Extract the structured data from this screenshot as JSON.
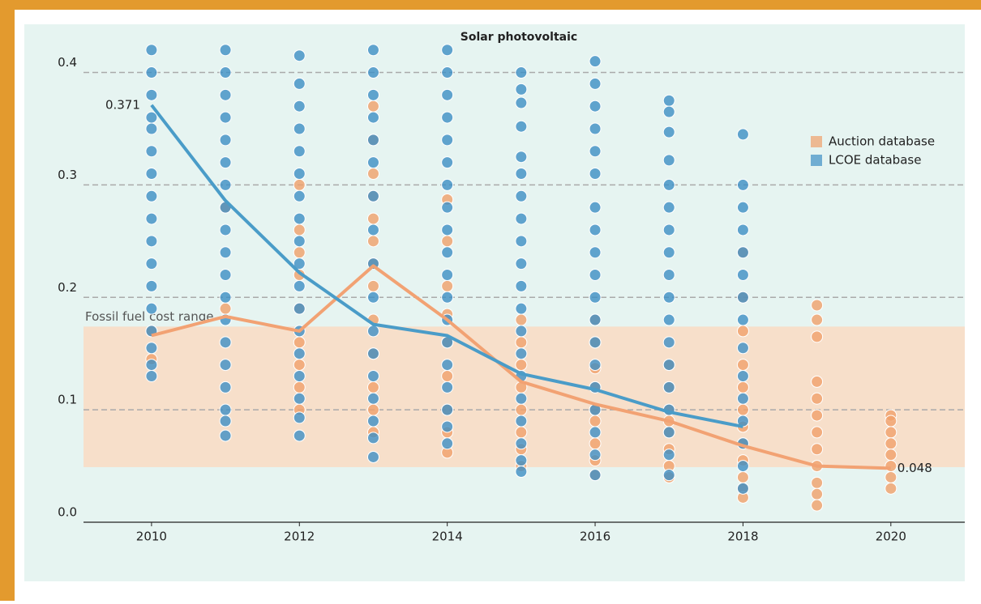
{
  "chart_data": {
    "type": "scatter",
    "title": "Solar photovoltaic",
    "xlim": [
      2009.08,
      2021.0
    ],
    "ylim": [
      0,
      0.44
    ],
    "xticks": [
      2010,
      2012,
      2014,
      2016,
      2018,
      2020
    ],
    "yticks": [
      {
        "value": 0,
        "label": "0.0"
      },
      0.1,
      0.2,
      0.3,
      0.4
    ],
    "grid": true,
    "legend": "upper right",
    "shaded_band": {
      "label": "Fossil fuel cost range",
      "range": [
        0.049,
        0.174
      ],
      "color": "#f7dfca"
    },
    "series": [
      {
        "name": "Auction database",
        "color": "#f0a06a",
        "groups": [
          {
            "x": 2010,
            "values": [
              0.17,
              0.145
            ]
          },
          {
            "x": 2011,
            "values": [
              0.28,
              0.19
            ]
          },
          {
            "x": 2012,
            "values": [
              0.3,
              0.26,
              0.24,
              0.22,
              0.19,
              0.16,
              0.14,
              0.12,
              0.1
            ]
          },
          {
            "x": 2013,
            "values": [
              0.37,
              0.34,
              0.31,
              0.29,
              0.27,
              0.25,
              0.23,
              0.21,
              0.18,
              0.15,
              0.12,
              0.1,
              0.08
            ]
          },
          {
            "x": 2014,
            "values": [
              0.287,
              0.25,
              0.21,
              0.185,
              0.16,
              0.13,
              0.1,
              0.08,
              0.062
            ]
          },
          {
            "x": 2015,
            "values": [
              0.18,
              0.16,
              0.14,
              0.12,
              0.1,
              0.08,
              0.065,
              0.05
            ]
          },
          {
            "x": 2016,
            "values": [
              0.18,
              0.16,
              0.137,
              0.12,
              0.1,
              0.09,
              0.07,
              0.055,
              0.042
            ]
          },
          {
            "x": 2017,
            "values": [
              0.14,
              0.12,
              0.1,
              0.09,
              0.08,
              0.065,
              0.05,
              0.04
            ]
          },
          {
            "x": 2018,
            "values": [
              0.24,
              0.2,
              0.17,
              0.14,
              0.12,
              0.1,
              0.085,
              0.07,
              0.055,
              0.04,
              0.03,
              0.022
            ]
          },
          {
            "x": 2019,
            "values": [
              0.193,
              0.18,
              0.165,
              0.125,
              0.11,
              0.095,
              0.08,
              0.065,
              0.05,
              0.035,
              0.025,
              0.015
            ]
          },
          {
            "x": 2020,
            "values": [
              0.095,
              0.09,
              0.08,
              0.07,
              0.06,
              0.05,
              0.04,
              0.03
            ]
          }
        ]
      },
      {
        "name": "LCOE database",
        "color": "#3d8fc4",
        "groups": [
          {
            "x": 2010,
            "values": [
              0.42,
              0.4,
              0.38,
              0.36,
              0.35,
              0.33,
              0.31,
              0.29,
              0.27,
              0.25,
              0.23,
              0.21,
              0.19,
              0.17,
              0.155,
              0.14,
              0.13
            ]
          },
          {
            "x": 2011,
            "values": [
              0.42,
              0.4,
              0.38,
              0.36,
              0.34,
              0.32,
              0.3,
              0.28,
              0.26,
              0.24,
              0.22,
              0.2,
              0.18,
              0.16,
              0.14,
              0.12,
              0.1,
              0.09,
              0.077
            ]
          },
          {
            "x": 2012,
            "values": [
              0.415,
              0.39,
              0.37,
              0.35,
              0.33,
              0.31,
              0.29,
              0.27,
              0.25,
              0.23,
              0.21,
              0.19,
              0.17,
              0.15,
              0.13,
              0.11,
              0.093,
              0.077
            ]
          },
          {
            "x": 2013,
            "values": [
              0.42,
              0.4,
              0.38,
              0.36,
              0.34,
              0.32,
              0.29,
              0.26,
              0.23,
              0.2,
              0.17,
              0.15,
              0.13,
              0.11,
              0.09,
              0.075,
              0.058
            ]
          },
          {
            "x": 2014,
            "values": [
              0.42,
              0.4,
              0.38,
              0.36,
              0.34,
              0.32,
              0.3,
              0.28,
              0.26,
              0.24,
              0.22,
              0.2,
              0.18,
              0.16,
              0.14,
              0.12,
              0.1,
              0.085,
              0.07
            ]
          },
          {
            "x": 2015,
            "values": [
              0.4,
              0.385,
              0.373,
              0.352,
              0.325,
              0.31,
              0.29,
              0.27,
              0.25,
              0.23,
              0.21,
              0.19,
              0.17,
              0.15,
              0.13,
              0.11,
              0.09,
              0.07,
              0.055,
              0.045
            ]
          },
          {
            "x": 2016,
            "values": [
              0.41,
              0.39,
              0.37,
              0.35,
              0.33,
              0.31,
              0.28,
              0.26,
              0.24,
              0.22,
              0.2,
              0.18,
              0.16,
              0.14,
              0.12,
              0.1,
              0.08,
              0.06,
              0.042
            ]
          },
          {
            "x": 2017,
            "values": [
              0.375,
              0.365,
              0.347,
              0.322,
              0.3,
              0.28,
              0.26,
              0.24,
              0.22,
              0.2,
              0.18,
              0.16,
              0.14,
              0.12,
              0.1,
              0.08,
              0.06,
              0.042
            ]
          },
          {
            "x": 2018,
            "values": [
              0.345,
              0.3,
              0.28,
              0.26,
              0.24,
              0.22,
              0.2,
              0.18,
              0.155,
              0.13,
              0.11,
              0.09,
              0.07,
              0.05,
              0.03
            ]
          }
        ]
      }
    ],
    "trend_lines": [
      {
        "color": "#f2a273",
        "x": [
          2010,
          2011,
          2012,
          2013,
          2014,
          2015,
          2016,
          2017,
          2018,
          2019,
          2020
        ],
        "values": [
          0.166,
          0.183,
          0.17,
          0.228,
          0.18,
          0.125,
          0.105,
          0.09,
          0.068,
          0.05,
          0.048
        ]
      },
      {
        "color": "#4a9cc8",
        "x": [
          2010,
          2011,
          2012,
          2013,
          2014,
          2015,
          2016,
          2017,
          2018
        ],
        "values": [
          0.371,
          0.286,
          0.222,
          0.176,
          0.166,
          0.132,
          0.118,
          0.098,
          0.085
        ]
      }
    ]
  }
}
